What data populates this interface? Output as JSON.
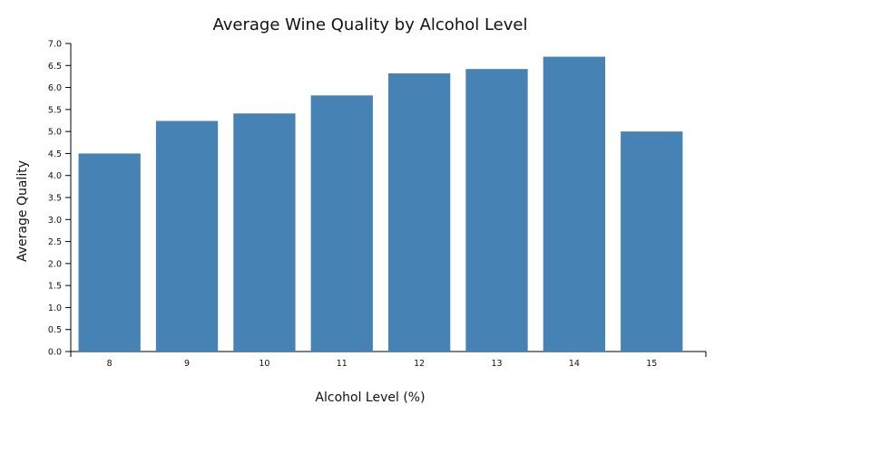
{
  "chart_data": {
    "type": "bar",
    "title": "Average Wine Quality by Alcohol Level",
    "xlabel": "Alcohol Level (%)",
    "ylabel": "Average Quality",
    "categories": [
      "8",
      "9",
      "10",
      "11",
      "12",
      "13",
      "14",
      "15"
    ],
    "values": [
      4.5,
      5.24,
      5.41,
      5.82,
      6.32,
      6.42,
      6.7,
      5.0
    ],
    "ylim": [
      0,
      7.0
    ],
    "yticks": [
      "0.0",
      "0.5",
      "1.0",
      "1.5",
      "2.0",
      "2.5",
      "3.0",
      "3.5",
      "4.0",
      "4.5",
      "5.0",
      "5.5",
      "6.0",
      "6.5",
      "7.0"
    ],
    "bar_color": "#4682b4",
    "axis_color": "#000000",
    "grid": false,
    "legend": false
  }
}
